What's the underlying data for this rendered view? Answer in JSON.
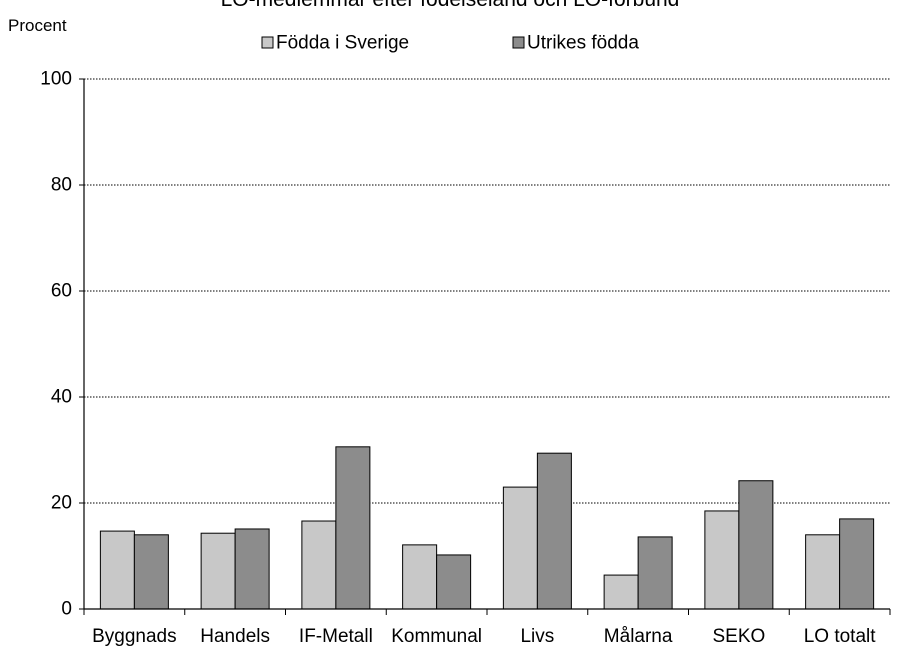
{
  "chart_data": {
    "type": "bar",
    "title": "LO-medlemmar efter födelseland och LO-förbund",
    "ylabel": "Procent",
    "xlabel": "",
    "ylim": [
      0,
      100
    ],
    "yticks": [
      0,
      20,
      40,
      60,
      80,
      100
    ],
    "grid": true,
    "legend_position": "top",
    "categories": [
      "Byggnads",
      "Handels",
      "IF-Metall",
      "Kommunal",
      "Livs",
      "Målarna",
      "SEKO",
      "LO totalt"
    ],
    "series": [
      {
        "name": "Födda i Sverige",
        "color": "#c8c8c8",
        "values": [
          14.7,
          14.3,
          16.6,
          12.1,
          23.0,
          6.4,
          18.5,
          14.0
        ]
      },
      {
        "name": "Utrikes födda",
        "color": "#8c8c8c",
        "values": [
          14.0,
          15.1,
          30.6,
          10.2,
          29.4,
          13.6,
          24.2,
          17.0
        ]
      }
    ]
  }
}
